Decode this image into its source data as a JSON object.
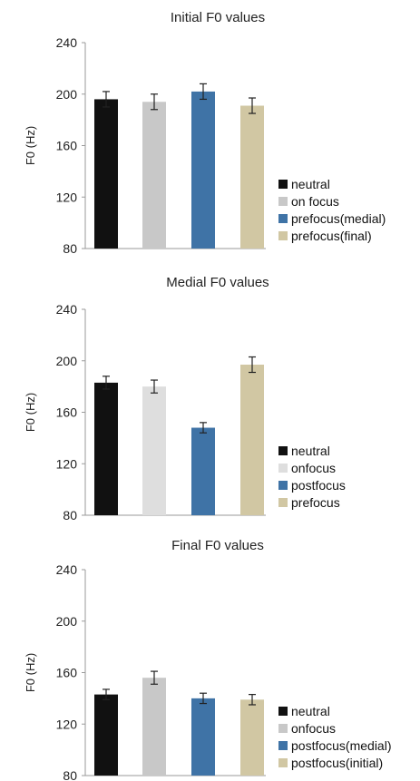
{
  "chart_data": [
    {
      "type": "bar",
      "title": "Initial F0 values",
      "ylabel": "F0 (Hz)",
      "ylim": [
        80,
        240
      ],
      "yticks": [
        80,
        120,
        160,
        200,
        240
      ],
      "grid": false,
      "legend_position": "right",
      "series": [
        {
          "name": "neutral",
          "value": 196,
          "error": 6,
          "color": "#111111"
        },
        {
          "name": "on focus",
          "value": 194,
          "error": 6,
          "color": "#c8c8c8"
        },
        {
          "name": "prefocus(medial)",
          "value": 202,
          "error": 6,
          "color": "#3f73a6"
        },
        {
          "name": "prefocus(final)",
          "value": 191,
          "error": 6,
          "color": "#d1c7a3"
        }
      ]
    },
    {
      "type": "bar",
      "title": "Medial F0 values",
      "ylabel": "F0 (Hz)",
      "ylim": [
        80,
        240
      ],
      "yticks": [
        80,
        120,
        160,
        200,
        240
      ],
      "grid": false,
      "legend_position": "right",
      "series": [
        {
          "name": "neutral",
          "value": 183,
          "error": 5,
          "color": "#111111"
        },
        {
          "name": "onfocus",
          "value": 180,
          "error": 5,
          "color": "#dedede"
        },
        {
          "name": "postfocus",
          "value": 148,
          "error": 4,
          "color": "#3f73a6"
        },
        {
          "name": "prefocus",
          "value": 197,
          "error": 6,
          "color": "#d1c7a3"
        }
      ]
    },
    {
      "type": "bar",
      "title": "Final F0 values",
      "ylabel": "F0 (Hz)",
      "ylim": [
        80,
        240
      ],
      "yticks": [
        80,
        120,
        160,
        200,
        240
      ],
      "grid": false,
      "legend_position": "right",
      "series": [
        {
          "name": "neutral",
          "value": 143,
          "error": 4,
          "color": "#111111"
        },
        {
          "name": "onfocus",
          "value": 156,
          "error": 5,
          "color": "#c8c8c8"
        },
        {
          "name": "postfocus(medial)",
          "value": 140,
          "error": 4,
          "color": "#3f73a6"
        },
        {
          "name": "postfocus(initial)",
          "value": 139,
          "error": 4,
          "color": "#d1c7a3"
        }
      ]
    }
  ]
}
